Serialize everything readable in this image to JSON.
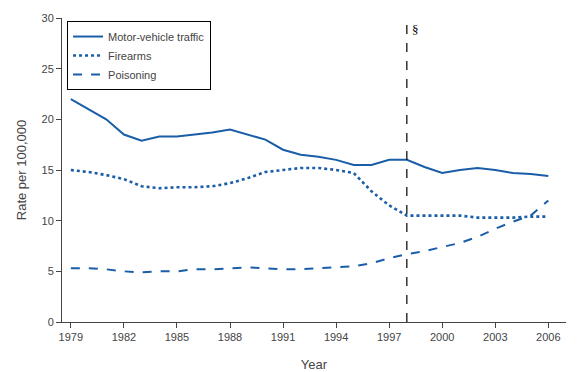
{
  "chart_data": {
    "type": "line",
    "title": "",
    "xlabel": "Year",
    "ylabel": "Rate per 100,000",
    "x": [
      1979,
      1980,
      1981,
      1982,
      1983,
      1984,
      1985,
      1986,
      1987,
      1988,
      1989,
      1990,
      1991,
      1992,
      1993,
      1994,
      1995,
      1996,
      1997,
      1998,
      1999,
      2000,
      2001,
      2002,
      2003,
      2004,
      2005,
      2006
    ],
    "series": [
      {
        "name": "Motor-vehicle traffic",
        "color": "#1a5ea8",
        "line_style": "solid",
        "values": [
          22.0,
          21.0,
          20.0,
          18.5,
          17.9,
          18.3,
          18.3,
          18.5,
          18.7,
          19.0,
          18.5,
          18.0,
          17.0,
          16.5,
          16.3,
          16.0,
          15.5,
          15.5,
          16.0,
          16.0,
          15.3,
          14.7,
          15.0,
          15.2,
          15.0,
          14.7,
          14.6,
          14.4
        ]
      },
      {
        "name": "Firearms",
        "color": "#1a5ea8",
        "line_style": "dotted",
        "values": [
          15.0,
          14.8,
          14.5,
          14.1,
          13.4,
          13.2,
          13.3,
          13.3,
          13.4,
          13.7,
          14.2,
          14.8,
          15.0,
          15.2,
          15.2,
          15.0,
          14.7,
          12.9,
          11.5,
          10.5,
          10.5,
          10.5,
          10.5,
          10.3,
          10.3,
          10.3,
          10.4,
          10.4
        ]
      },
      {
        "name": "Poisoning",
        "color": "#1a5ea8",
        "line_style": "dashed",
        "values": [
          5.3,
          5.3,
          5.2,
          5.0,
          4.9,
          5.0,
          5.0,
          5.2,
          5.2,
          5.3,
          5.4,
          5.3,
          5.2,
          5.2,
          5.3,
          5.4,
          5.5,
          5.8,
          6.3,
          6.7,
          7.0,
          7.4,
          7.8,
          8.4,
          9.2,
          9.9,
          10.5,
          12.0
        ]
      }
    ],
    "vlines": [
      {
        "x": 1998,
        "label": "§",
        "color": "#000000",
        "line_style": "dashed"
      }
    ],
    "xlim": [
      1978.5,
      2007
    ],
    "ylim": [
      0,
      30
    ],
    "xticks": [
      1979,
      1982,
      1985,
      1988,
      1991,
      1994,
      1997,
      2000,
      2003,
      2006
    ],
    "yticks": [
      0,
      5,
      10,
      15,
      20,
      25,
      30
    ],
    "grid": false,
    "legend": "upper left"
  }
}
